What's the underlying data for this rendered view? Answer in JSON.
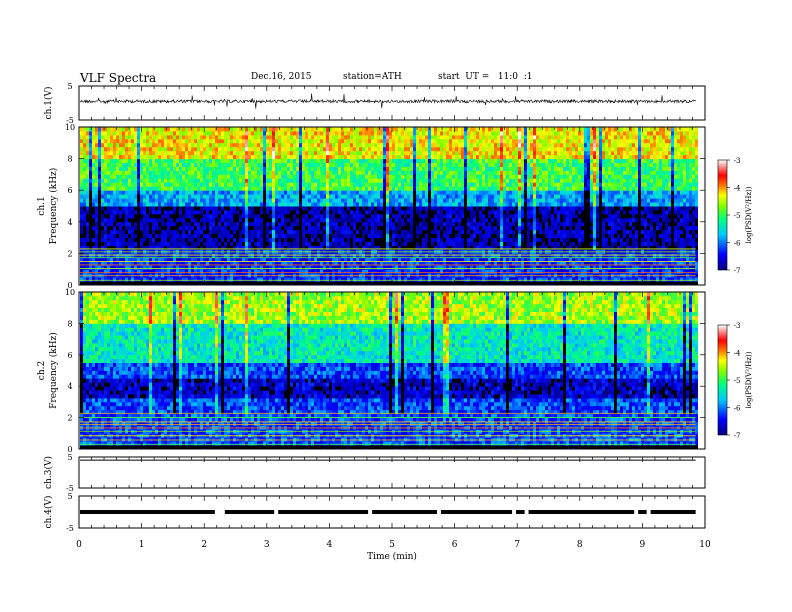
{
  "header": {
    "title": "VLF Spectra",
    "date": "Dec.16, 2015",
    "station": "station=ATH",
    "start": "start  UT =   11:0  :1"
  },
  "chart_data": [
    {
      "type": "line",
      "name": "ch1-waveform",
      "ylabel": "ch.1(V)",
      "ylim": [
        -5,
        5
      ],
      "yticks": [
        "5",
        "-5"
      ],
      "note": "broadband waveform with impulsive spikes around 0 V"
    },
    {
      "type": "heatmap",
      "name": "ch1-spectrogram",
      "ylabel": "ch.1\nFrequency (kHz)",
      "ylim": [
        0,
        10
      ],
      "yticks": [
        "0",
        "2",
        "4",
        "6",
        "8",
        "10"
      ],
      "colorbar": {
        "label": "log(PSD(V²/Hz))",
        "range": [
          -7,
          -3
        ],
        "ticks": [
          "-3",
          "-4",
          "-5",
          "-6",
          "-7"
        ]
      },
      "bands": [
        {
          "f_lo": 8,
          "f_hi": 10,
          "level": -4.3
        },
        {
          "f_lo": 6,
          "f_hi": 8,
          "level": -5.0
        },
        {
          "f_lo": 5,
          "f_hi": 6,
          "level": -5.8
        },
        {
          "f_lo": 2.3,
          "f_hi": 5,
          "level": -6.8
        },
        {
          "f_lo": 0.3,
          "f_hi": 2.3,
          "level": -6.3
        }
      ]
    },
    {
      "type": "heatmap",
      "name": "ch2-spectrogram",
      "ylabel": "ch.2\nFrequency (kHz)",
      "ylim": [
        0,
        10
      ],
      "yticks": [
        "0",
        "2",
        "4",
        "6",
        "8",
        "10"
      ],
      "colorbar": {
        "label": "log(PSD(V²/Hz))",
        "range": [
          -7,
          -3
        ],
        "ticks": [
          "-3",
          "-4",
          "-5",
          "-6",
          "-7"
        ]
      },
      "bands": [
        {
          "f_lo": 8,
          "f_hi": 10,
          "level": -4.6
        },
        {
          "f_lo": 5.5,
          "f_hi": 8,
          "level": -5.4
        },
        {
          "f_lo": 4.5,
          "f_hi": 5.5,
          "level": -6.2
        },
        {
          "f_lo": 3.2,
          "f_hi": 4.5,
          "level": -6.7
        },
        {
          "f_lo": 0.3,
          "f_hi": 3.2,
          "level": -6.2
        }
      ]
    },
    {
      "type": "line",
      "name": "ch3-waveform",
      "ylabel": "ch.3(V)",
      "ylim": [
        -5,
        5
      ],
      "yticks": [
        "5",
        "-5"
      ],
      "note": "flat near 4.5 V"
    },
    {
      "type": "line",
      "name": "ch4-waveform",
      "ylabel": "ch.4(V)",
      "ylim": [
        -5,
        5
      ],
      "yticks": [
        "5",
        "-5"
      ],
      "note": "thick band near 0 V with dropouts",
      "gaps_min": [
        2.25,
        3.15,
        4.65,
        5.75,
        6.95,
        7.15,
        8.9,
        9.1
      ]
    }
  ],
  "xaxis": {
    "xlabel": "Time  (min)",
    "xlim": [
      0,
      10
    ],
    "xticks": [
      "0",
      "1",
      "2",
      "3",
      "4",
      "5",
      "6",
      "7",
      "8",
      "9",
      "10"
    ],
    "data_end_min": 9.85
  }
}
